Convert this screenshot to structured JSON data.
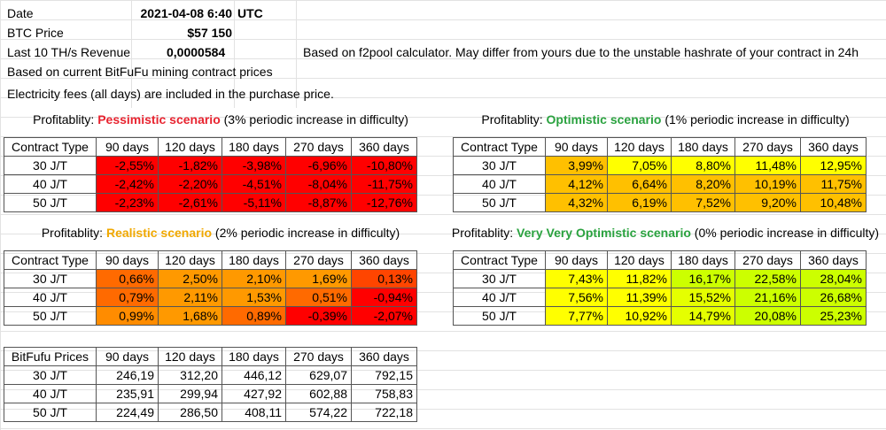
{
  "info": {
    "date_label": "Date",
    "date_value": "2021-04-08 6:40",
    "date_tz": "UTC",
    "btc_label": "BTC Price",
    "btc_value": "$57 150",
    "revenue_label": "Last 10 TH/s Revenue",
    "revenue_value": "0,0000584",
    "revenue_note": "Based on f2pool calculator. May differ from yours due to the unstable hashrate of your contract in 24h",
    "note_contract": "Based on current BitFuFu mining contract prices",
    "note_fees": "Electricity fees (all days) are included in the purchase price."
  },
  "headers": [
    "90 days",
    "120 days",
    "180 days",
    "270 days",
    "360 days"
  ],
  "scenarios": [
    {
      "id": "pessimistic",
      "caption_prefix": "Profitablity: ",
      "caption_name": "Pessimistic scenario",
      "caption_suffix": " (3% periodic increase in difficulty)",
      "name_color": "#e8232f",
      "corner": "Contract Type",
      "rows": [
        {
          "label": "30 J/T",
          "values": [
            "-2,55%",
            "-1,82%",
            "-3,98%",
            "-6,96%",
            "-10,80%"
          ]
        },
        {
          "label": "40 J/T",
          "values": [
            "-2,42%",
            "-2,20%",
            "-4,51%",
            "-8,04%",
            "-11,75%"
          ]
        },
        {
          "label": "50 J/T",
          "values": [
            "-2,23%",
            "-2,61%",
            "-5,11%",
            "-8,87%",
            "-12,76%"
          ]
        }
      ],
      "colors": [
        [
          "#ff0000",
          "#ff0000",
          "#ff0000",
          "#ff0000",
          "#ff0000"
        ],
        [
          "#ff0000",
          "#ff0000",
          "#ff0000",
          "#ff0000",
          "#ff0000"
        ],
        [
          "#ff0000",
          "#ff0000",
          "#ff0000",
          "#ff0000",
          "#ff0000"
        ]
      ]
    },
    {
      "id": "optimistic",
      "caption_prefix": "Profitablity: ",
      "caption_name": "Optimistic scenario",
      "caption_suffix": " (1% periodic increase in difficulty)",
      "name_color": "#2aa23f",
      "corner": "Contract Type",
      "rows": [
        {
          "label": "30 J/T",
          "values": [
            "3,99%",
            "7,05%",
            "8,80%",
            "11,48%",
            "12,95%"
          ]
        },
        {
          "label": "40 J/T",
          "values": [
            "4,12%",
            "6,64%",
            "8,20%",
            "10,19%",
            "11,75%"
          ]
        },
        {
          "label": "50 J/T",
          "values": [
            "4,32%",
            "6,19%",
            "7,52%",
            "9,20%",
            "10,48%"
          ]
        }
      ],
      "colors": [
        [
          "#ffc000",
          "#ffff00",
          "#ffff00",
          "#ffff00",
          "#ffff00"
        ],
        [
          "#ffc000",
          "#ffc000",
          "#ffc000",
          "#ffc000",
          "#ffc000"
        ],
        [
          "#ffc000",
          "#ffc000",
          "#ffc000",
          "#ffc000",
          "#ffc000"
        ]
      ]
    },
    {
      "id": "realistic",
      "caption_prefix": "Profitablity: ",
      "caption_name": "Realistic scenario",
      "caption_suffix": " (2% periodic increase in difficulty)",
      "name_color": "#f0a800",
      "corner": "Contract Type",
      "rows": [
        {
          "label": "30 J/T",
          "values": [
            "0,66%",
            "2,50%",
            "2,10%",
            "1,69%",
            "0,13%"
          ]
        },
        {
          "label": "40 J/T",
          "values": [
            "0,79%",
            "2,11%",
            "1,53%",
            "0,51%",
            "-0,94%"
          ]
        },
        {
          "label": "50 J/T",
          "values": [
            "0,99%",
            "1,68%",
            "0,89%",
            "-0,39%",
            "-2,07%"
          ]
        }
      ],
      "colors": [
        [
          "#ff6a00",
          "#ff9900",
          "#ff9900",
          "#ff9900",
          "#ff4500"
        ],
        [
          "#ff6a00",
          "#ff9900",
          "#ff9900",
          "#ff6a00",
          "#ff0000"
        ],
        [
          "#ff8c00",
          "#ff9900",
          "#ff6a00",
          "#ff0000",
          "#ff0000"
        ]
      ]
    },
    {
      "id": "very-optimistic",
      "caption_prefix": "Profitablity: ",
      "caption_name": "Very Very Optimistic scenario",
      "caption_suffix": " (0% periodic increase in difficulty)",
      "name_color": "#2aa23f",
      "corner": "Contract Type",
      "rows": [
        {
          "label": "30 J/T",
          "values": [
            "7,43%",
            "11,82%",
            "16,17%",
            "22,58%",
            "28,04%"
          ]
        },
        {
          "label": "40 J/T",
          "values": [
            "7,56%",
            "11,39%",
            "15,52%",
            "21,16%",
            "26,68%"
          ]
        },
        {
          "label": "50 J/T",
          "values": [
            "7,77%",
            "10,92%",
            "14,79%",
            "20,08%",
            "25,23%"
          ]
        }
      ],
      "colors": [
        [
          "#ffff00",
          "#ffff00",
          "#ccff00",
          "#ccff00",
          "#ccff00"
        ],
        [
          "#ffff00",
          "#ffff00",
          "#e5ff00",
          "#ccff00",
          "#ccff00"
        ],
        [
          "#ffff00",
          "#ffff00",
          "#e5ff00",
          "#ccff00",
          "#ccff00"
        ]
      ]
    }
  ],
  "prices": {
    "corner": "BitFufu Prices",
    "rows": [
      {
        "label": "30 J/T",
        "values": [
          "246,19",
          "312,20",
          "446,12",
          "629,07",
          "792,15"
        ]
      },
      {
        "label": "40 J/T",
        "values": [
          "235,91",
          "299,94",
          "427,92",
          "602,88",
          "758,83"
        ]
      },
      {
        "label": "50 J/T",
        "values": [
          "224,49",
          "286,50",
          "408,11",
          "574,22",
          "722,18"
        ]
      }
    ]
  }
}
